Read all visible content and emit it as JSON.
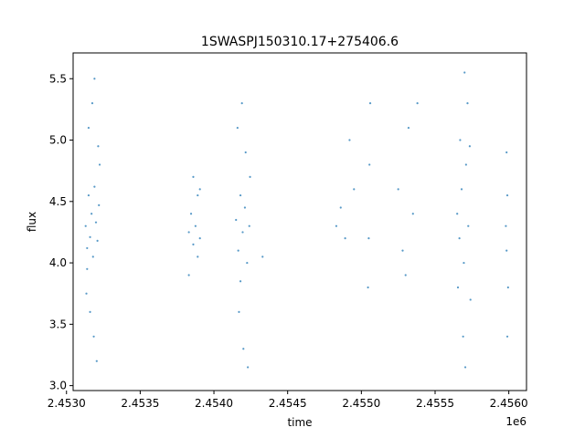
{
  "chart_data": {
    "type": "scatter",
    "title": "1SWASPJ150310.17+275406.6",
    "xlabel": "time",
    "ylabel": "flux",
    "x_offset_label": "1e6",
    "xlim": [
      2453045,
      2456120
    ],
    "ylim": [
      2.96,
      5.71
    ],
    "x_ticks": [
      2453000,
      2453500,
      2454000,
      2454500,
      2455000,
      2455500,
      2456000
    ],
    "x_tick_labels": [
      "2.4530",
      "2.4535",
      "2.4540",
      "2.4545",
      "2.4550",
      "2.4555",
      "2.4560"
    ],
    "y_ticks": [
      3.0,
      3.5,
      4.0,
      4.5,
      5.0,
      5.5
    ],
    "y_tick_labels": [
      "3.0",
      "3.5",
      "4.0",
      "4.5",
      "5.0",
      "5.5"
    ],
    "grid": false,
    "marker_color": "#1f77b4",
    "series": [
      {
        "points": [
          [
            2453130,
            4.3
          ],
          [
            2453140,
            4.12
          ],
          [
            2453150,
            4.55
          ],
          [
            2453160,
            4.21
          ],
          [
            2453170,
            4.4
          ],
          [
            2453180,
            4.05
          ],
          [
            2453190,
            4.62
          ],
          [
            2453200,
            4.33
          ],
          [
            2453210,
            4.18
          ],
          [
            2453220,
            4.47
          ],
          [
            2453135,
            3.75
          ],
          [
            2453160,
            3.6
          ],
          [
            2453185,
            3.4
          ],
          [
            2453205,
            3.2
          ],
          [
            2453150,
            5.1
          ],
          [
            2453175,
            5.3
          ],
          [
            2453190,
            5.5
          ],
          [
            2453215,
            4.95
          ],
          [
            2453140,
            3.95
          ],
          [
            2453225,
            4.8
          ],
          [
            2453830,
            4.25
          ],
          [
            2453845,
            4.4
          ],
          [
            2453860,
            4.15
          ],
          [
            2453875,
            4.3
          ],
          [
            2453890,
            4.55
          ],
          [
            2453905,
            4.2
          ],
          [
            2453830,
            3.9
          ],
          [
            2453860,
            4.7
          ],
          [
            2453890,
            4.05
          ],
          [
            2453905,
            4.6
          ],
          [
            2454150,
            4.35
          ],
          [
            2454165,
            4.1
          ],
          [
            2454180,
            4.55
          ],
          [
            2454195,
            4.25
          ],
          [
            2454210,
            4.45
          ],
          [
            2454225,
            4.0
          ],
          [
            2454240,
            4.3
          ],
          [
            2454170,
            3.6
          ],
          [
            2454200,
            3.3
          ],
          [
            2454230,
            3.15
          ],
          [
            2454160,
            5.1
          ],
          [
            2454190,
            5.3
          ],
          [
            2454215,
            4.9
          ],
          [
            2454245,
            4.7
          ],
          [
            2454180,
            3.85
          ],
          [
            2454330,
            4.05
          ],
          [
            2454830,
            4.3
          ],
          [
            2454860,
            4.45
          ],
          [
            2454890,
            4.2
          ],
          [
            2454920,
            5.0
          ],
          [
            2454950,
            4.6
          ],
          [
            2455050,
            4.2
          ],
          [
            2455055,
            4.8
          ],
          [
            2455060,
            5.3
          ],
          [
            2455045,
            3.8
          ],
          [
            2455250,
            4.6
          ],
          [
            2455280,
            4.1
          ],
          [
            2455300,
            3.9
          ],
          [
            2455320,
            5.1
          ],
          [
            2455350,
            4.4
          ],
          [
            2455380,
            5.3
          ],
          [
            2455650,
            4.4
          ],
          [
            2455665,
            4.2
          ],
          [
            2455680,
            4.6
          ],
          [
            2455695,
            4.0
          ],
          [
            2455710,
            4.8
          ],
          [
            2455725,
            4.3
          ],
          [
            2455740,
            3.7
          ],
          [
            2455690,
            3.4
          ],
          [
            2455705,
            3.15
          ],
          [
            2455720,
            5.3
          ],
          [
            2455700,
            5.55
          ],
          [
            2455670,
            5.0
          ],
          [
            2455735,
            4.95
          ],
          [
            2455655,
            3.8
          ],
          [
            2455980,
            4.3
          ],
          [
            2455985,
            4.1
          ],
          [
            2455990,
            4.55
          ],
          [
            2455995,
            3.8
          ],
          [
            2455985,
            4.9
          ],
          [
            2455990,
            3.4
          ]
        ]
      }
    ]
  }
}
